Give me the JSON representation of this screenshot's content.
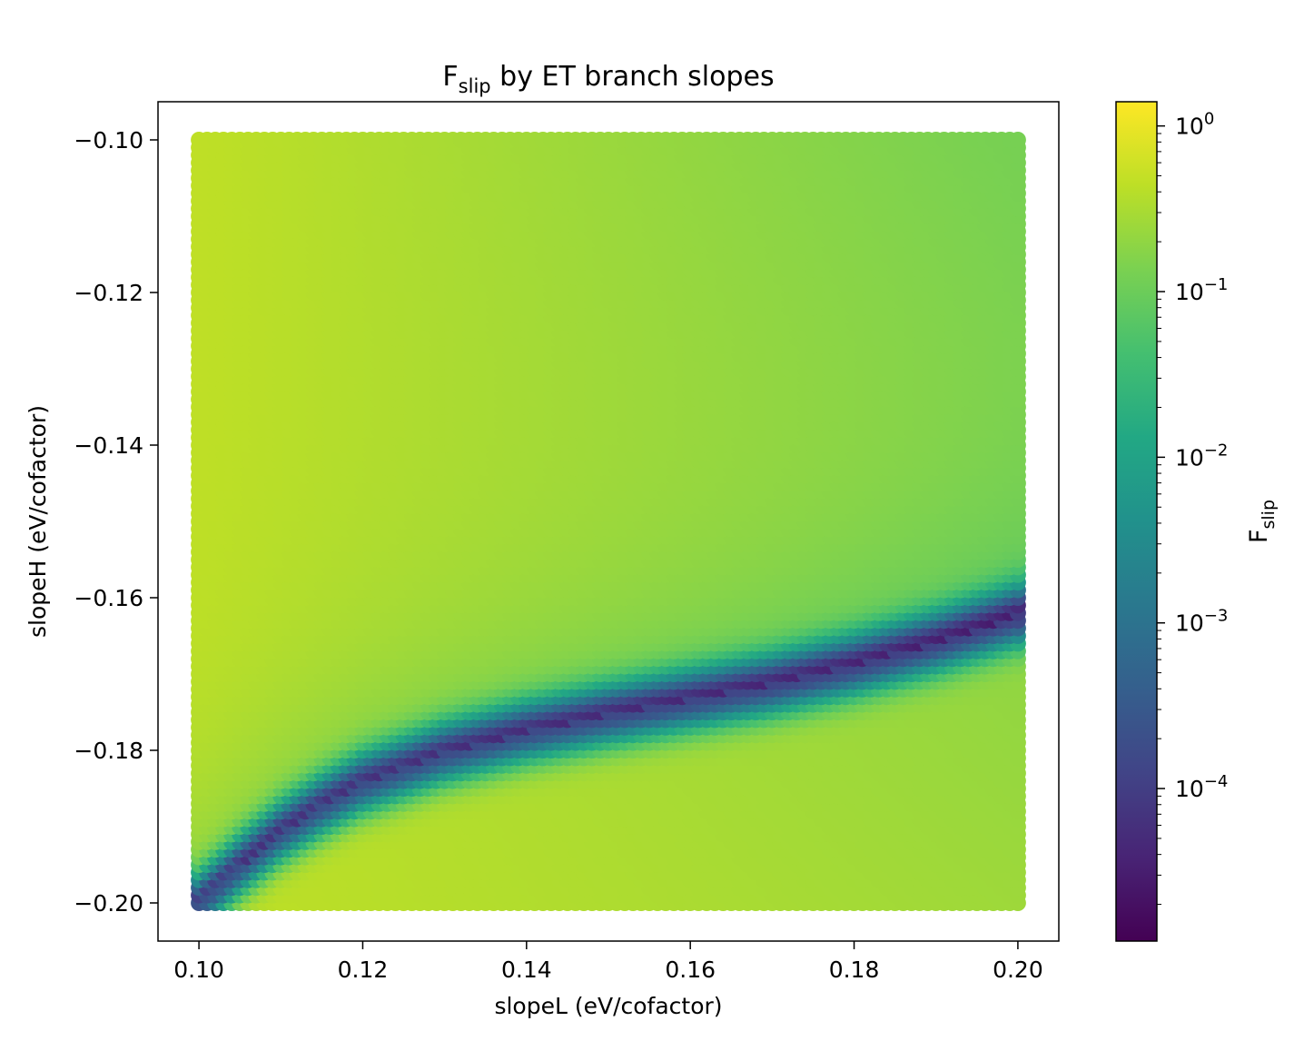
{
  "chart_data": {
    "type": "scatter",
    "title_main": "F",
    "title_sub": "slip",
    "title_rest": " by ET branch slopes",
    "xlabel": "slopeL (eV/cofactor)",
    "ylabel": "slopeH (eV/cofactor)",
    "xlim": [
      0.095,
      0.205
    ],
    "ylim": [
      -0.205,
      -0.095
    ],
    "x_ticks": [
      {
        "value": 0.1,
        "label": "0.10"
      },
      {
        "value": 0.12,
        "label": "0.12"
      },
      {
        "value": 0.14,
        "label": "0.14"
      },
      {
        "value": 0.16,
        "label": "0.16"
      },
      {
        "value": 0.18,
        "label": "0.18"
      },
      {
        "value": 0.2,
        "label": "0.20"
      }
    ],
    "y_ticks": [
      {
        "value": -0.1,
        "label": "−0.10"
      },
      {
        "value": -0.12,
        "label": "−0.12"
      },
      {
        "value": -0.14,
        "label": "−0.14"
      },
      {
        "value": -0.16,
        "label": "−0.16"
      },
      {
        "value": -0.18,
        "label": "−0.18"
      },
      {
        "value": -0.2,
        "label": "−0.20"
      }
    ],
    "grid": {
      "x_range": [
        0.1,
        0.2
      ],
      "y_range": [
        -0.2,
        -0.1
      ],
      "nx": 101,
      "ny": 101
    },
    "ridge_curve": {
      "description": "minimum of Fslip along a curve",
      "x": [
        0.1,
        0.105,
        0.11,
        0.115,
        0.12,
        0.13,
        0.14,
        0.15,
        0.16,
        0.17,
        0.18,
        0.19,
        0.2
      ],
      "y": [
        -0.2,
        -0.195,
        -0.1905,
        -0.187,
        -0.184,
        -0.18,
        -0.1772,
        -0.175,
        -0.173,
        -0.171,
        -0.1685,
        -0.1655,
        -0.162
      ]
    },
    "value_samples": {
      "corner_top_left": 0.45,
      "corner_top_right": 0.12,
      "center_upper": 0.15,
      "bottom_left": 0.7,
      "bottom_right": 1.0
    },
    "colorbar": {
      "label_main": "F",
      "label_sub": "slip",
      "scale": "log",
      "range": [
        1.2e-05,
        1.4
      ],
      "colormap": "viridis",
      "major_ticks": [
        {
          "value": 1,
          "base": "10",
          "exp": "0"
        },
        {
          "value": 0.1,
          "base": "10",
          "exp": "−1"
        },
        {
          "value": 0.01,
          "base": "10",
          "exp": "−2"
        },
        {
          "value": 0.001,
          "base": "10",
          "exp": "−3"
        },
        {
          "value": 0.0001,
          "base": "10",
          "exp": "−4"
        }
      ]
    }
  }
}
